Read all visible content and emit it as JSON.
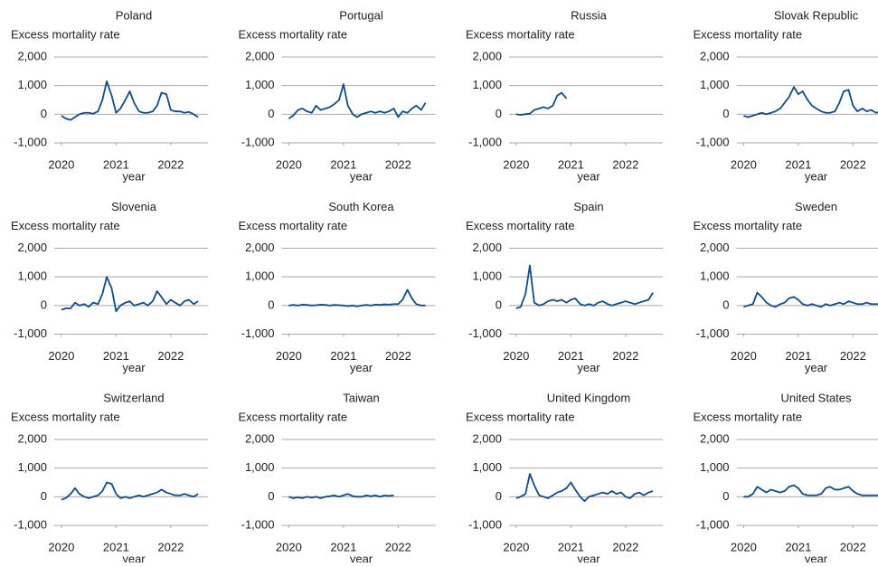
{
  "chart_data": [
    {
      "type": "line",
      "title": "Poland",
      "ylabel": "Excess mortality rate",
      "xlabel": "year",
      "color": "#0b4d93",
      "x": [
        2020,
        2020.08,
        2020.17,
        2020.25,
        2020.33,
        2020.42,
        2020.5,
        2020.58,
        2020.67,
        2020.75,
        2020.83,
        2020.92,
        2021,
        2021.08,
        2021.17,
        2021.25,
        2021.33,
        2021.42,
        2021.5,
        2021.58,
        2021.67,
        2021.75,
        2021.83,
        2021.92,
        2022,
        2022.08,
        2022.17,
        2022.25,
        2022.33,
        2022.42,
        2022.5
      ],
      "values": [
        -50,
        -150,
        -200,
        -100,
        0,
        50,
        50,
        20,
        100,
        500,
        1150,
        650,
        50,
        200,
        500,
        800,
        400,
        100,
        50,
        50,
        100,
        300,
        750,
        700,
        150,
        100,
        100,
        50,
        80,
        0,
        -100
      ],
      "xlim": [
        2019.87,
        2022.68
      ],
      "xticks": [
        2020,
        2021,
        2022
      ],
      "ylim": [
        -1000,
        2000
      ],
      "yticks": [
        {
          "value": -1000,
          "label": "-1,000"
        },
        0,
        {
          "value": 1000,
          "label": "1,000"
        },
        {
          "value": 2000,
          "label": "2,000"
        }
      ]
    },
    {
      "type": "line",
      "title": "Portugal",
      "ylabel": "Excess mortality rate",
      "xlabel": "year",
      "color": "#0b4d93",
      "x": [
        2020,
        2020.08,
        2020.17,
        2020.25,
        2020.33,
        2020.42,
        2020.5,
        2020.58,
        2020.67,
        2020.75,
        2020.83,
        2020.92,
        2021,
        2021.08,
        2021.17,
        2021.25,
        2021.33,
        2021.42,
        2021.5,
        2021.58,
        2021.67,
        2021.75,
        2021.83,
        2021.92,
        2022,
        2022.08,
        2022.17,
        2022.25,
        2022.33,
        2022.42,
        2022.5
      ],
      "values": [
        -150,
        -50,
        150,
        200,
        100,
        50,
        300,
        150,
        200,
        250,
        350,
        500,
        1050,
        300,
        0,
        -100,
        0,
        50,
        100,
        50,
        100,
        50,
        100,
        200,
        -100,
        100,
        50,
        200,
        300,
        150,
        400
      ],
      "xlim": [
        2019.87,
        2022.68
      ],
      "xticks": [
        2020,
        2021,
        2022
      ],
      "ylim": [
        -1000,
        2000
      ],
      "yticks": [
        {
          "value": -1000,
          "label": "-1,000"
        },
        0,
        {
          "value": 1000,
          "label": "1,000"
        },
        {
          "value": 2000,
          "label": "2,000"
        }
      ]
    },
    {
      "type": "line",
      "title": "Russia",
      "ylabel": "Excess mortality rate",
      "xlabel": "year",
      "color": "#0b4d93",
      "x": [
        2020,
        2020.08,
        2020.17,
        2020.25,
        2020.33,
        2020.42,
        2020.5,
        2020.58,
        2020.67,
        2020.75,
        2020.83,
        2020.92
      ],
      "values": [
        0,
        -20,
        0,
        20,
        150,
        200,
        250,
        200,
        300,
        650,
        750,
        550
      ],
      "xlim": [
        2019.87,
        2022.68
      ],
      "xticks": [
        2020,
        2021,
        2022
      ],
      "ylim": [
        -1000,
        2000
      ],
      "yticks": [
        {
          "value": -1000,
          "label": "-1,000"
        },
        0,
        {
          "value": 1000,
          "label": "1,000"
        },
        {
          "value": 2000,
          "label": "2,000"
        }
      ]
    },
    {
      "type": "line",
      "title": "Slovak Republic",
      "ylabel": "Excess mortality rate",
      "xlabel": "year",
      "color": "#0b4d93",
      "x": [
        2020,
        2020.08,
        2020.17,
        2020.25,
        2020.33,
        2020.42,
        2020.5,
        2020.58,
        2020.67,
        2020.75,
        2020.83,
        2020.92,
        2021,
        2021.08,
        2021.17,
        2021.25,
        2021.33,
        2021.42,
        2021.5,
        2021.58,
        2021.67,
        2021.75,
        2021.83,
        2021.92,
        2022,
        2022.08,
        2022.17,
        2022.25,
        2022.33,
        2022.42,
        2022.5
      ],
      "values": [
        -50,
        -100,
        -50,
        0,
        50,
        0,
        50,
        100,
        200,
        400,
        600,
        950,
        700,
        800,
        500,
        300,
        200,
        100,
        50,
        50,
        100,
        400,
        800,
        850,
        300,
        100,
        200,
        100,
        150,
        50,
        100
      ],
      "xlim": [
        2019.87,
        2022.68
      ],
      "xticks": [
        2020,
        2021,
        2022
      ],
      "ylim": [
        -1000,
        2000
      ],
      "yticks": [
        {
          "value": -1000,
          "label": "-1,000"
        },
        0,
        {
          "value": 1000,
          "label": "1,000"
        },
        {
          "value": 2000,
          "label": "2,000"
        }
      ]
    },
    {
      "type": "line",
      "title": "Slovenia",
      "ylabel": "Excess mortality rate",
      "xlabel": "year",
      "color": "#0b4d93",
      "x": [
        2020,
        2020.08,
        2020.17,
        2020.25,
        2020.33,
        2020.42,
        2020.5,
        2020.58,
        2020.67,
        2020.75,
        2020.83,
        2020.92,
        2021,
        2021.08,
        2021.17,
        2021.25,
        2021.33,
        2021.42,
        2021.5,
        2021.58,
        2021.67,
        2021.75,
        2021.83,
        2021.92,
        2022,
        2022.08,
        2022.17,
        2022.25,
        2022.33,
        2022.42,
        2022.5
      ],
      "values": [
        -150,
        -100,
        -100,
        100,
        0,
        50,
        -50,
        100,
        50,
        400,
        1000,
        600,
        -200,
        0,
        100,
        150,
        0,
        50,
        100,
        0,
        150,
        500,
        300,
        50,
        200,
        100,
        0,
        150,
        200,
        50,
        150
      ],
      "xlim": [
        2019.87,
        2022.68
      ],
      "xticks": [
        2020,
        2021,
        2022
      ],
      "ylim": [
        -1000,
        2000
      ],
      "yticks": [
        {
          "value": -1000,
          "label": "-1,000"
        },
        0,
        {
          "value": 1000,
          "label": "1,000"
        },
        {
          "value": 2000,
          "label": "2,000"
        }
      ]
    },
    {
      "type": "line",
      "title": "South Korea",
      "ylabel": "Excess mortality rate",
      "xlabel": "year",
      "color": "#0b4d93",
      "x": [
        2020,
        2020.08,
        2020.17,
        2020.25,
        2020.33,
        2020.42,
        2020.5,
        2020.58,
        2020.67,
        2020.75,
        2020.83,
        2020.92,
        2021,
        2021.08,
        2021.17,
        2021.25,
        2021.33,
        2021.42,
        2021.5,
        2021.58,
        2021.67,
        2021.75,
        2021.83,
        2021.92,
        2022,
        2022.08,
        2022.17,
        2022.25,
        2022.33,
        2022.42,
        2022.5
      ],
      "values": [
        0,
        20,
        0,
        30,
        20,
        0,
        10,
        30,
        20,
        0,
        20,
        10,
        0,
        -20,
        0,
        -30,
        0,
        20,
        0,
        30,
        20,
        40,
        30,
        50,
        50,
        200,
        550,
        250,
        50,
        0,
        0
      ],
      "xlim": [
        2019.87,
        2022.68
      ],
      "xticks": [
        2020,
        2021,
        2022
      ],
      "ylim": [
        -1000,
        2000
      ],
      "yticks": [
        {
          "value": -1000,
          "label": "-1,000"
        },
        0,
        {
          "value": 1000,
          "label": "1,000"
        },
        {
          "value": 2000,
          "label": "2,000"
        }
      ]
    },
    {
      "type": "line",
      "title": "Spain",
      "ylabel": "Excess mortality rate",
      "xlabel": "year",
      "color": "#0b4d93",
      "x": [
        2020,
        2020.08,
        2020.17,
        2020.25,
        2020.33,
        2020.42,
        2020.5,
        2020.58,
        2020.67,
        2020.75,
        2020.83,
        2020.92,
        2021,
        2021.08,
        2021.17,
        2021.25,
        2021.33,
        2021.42,
        2021.5,
        2021.58,
        2021.67,
        2021.75,
        2021.83,
        2021.92,
        2022,
        2022.08,
        2022.17,
        2022.25,
        2022.33,
        2022.42,
        2022.5
      ],
      "values": [
        -100,
        -50,
        400,
        1400,
        100,
        0,
        50,
        150,
        200,
        150,
        200,
        100,
        200,
        250,
        50,
        0,
        50,
        0,
        100,
        150,
        50,
        0,
        50,
        100,
        150,
        100,
        50,
        100,
        150,
        200,
        450
      ],
      "xlim": [
        2019.87,
        2022.68
      ],
      "xticks": [
        2020,
        2021,
        2022
      ],
      "ylim": [
        -1000,
        2000
      ],
      "yticks": [
        {
          "value": -1000,
          "label": "-1,000"
        },
        0,
        {
          "value": 1000,
          "label": "1,000"
        },
        {
          "value": 2000,
          "label": "2,000"
        }
      ]
    },
    {
      "type": "line",
      "title": "Sweden",
      "ylabel": "Excess mortality rate",
      "xlabel": "year",
      "color": "#0b4d93",
      "x": [
        2020,
        2020.08,
        2020.17,
        2020.25,
        2020.33,
        2020.42,
        2020.5,
        2020.58,
        2020.67,
        2020.75,
        2020.83,
        2020.92,
        2021,
        2021.08,
        2021.17,
        2021.25,
        2021.33,
        2021.42,
        2021.5,
        2021.58,
        2021.67,
        2021.75,
        2021.83,
        2021.92,
        2022,
        2022.08,
        2022.17,
        2022.25,
        2022.33,
        2022.42,
        2022.5
      ],
      "values": [
        -50,
        0,
        50,
        450,
        300,
        100,
        0,
        -50,
        50,
        100,
        250,
        300,
        200,
        50,
        0,
        50,
        0,
        -50,
        50,
        0,
        50,
        100,
        50,
        150,
        100,
        50,
        50,
        100,
        50,
        50,
        50
      ],
      "xlim": [
        2019.87,
        2022.68
      ],
      "xticks": [
        2020,
        2021,
        2022
      ],
      "ylim": [
        -1000,
        2000
      ],
      "yticks": [
        {
          "value": -1000,
          "label": "-1,000"
        },
        0,
        {
          "value": 1000,
          "label": "1,000"
        },
        {
          "value": 2000,
          "label": "2,000"
        }
      ]
    },
    {
      "type": "line",
      "title": "Switzerland",
      "ylabel": "Excess mortality rate",
      "xlabel": "year",
      "color": "#0b4d93",
      "x": [
        2020,
        2020.08,
        2020.17,
        2020.25,
        2020.33,
        2020.42,
        2020.5,
        2020.58,
        2020.67,
        2020.75,
        2020.83,
        2020.92,
        2021,
        2021.08,
        2021.17,
        2021.25,
        2021.33,
        2021.42,
        2021.5,
        2021.58,
        2021.67,
        2021.75,
        2021.83,
        2021.92,
        2022,
        2022.08,
        2022.17,
        2022.25,
        2022.33,
        2022.42,
        2022.5
      ],
      "values": [
        -100,
        -50,
        100,
        300,
        100,
        0,
        -50,
        0,
        50,
        200,
        500,
        450,
        100,
        -50,
        0,
        -50,
        0,
        50,
        0,
        50,
        100,
        150,
        250,
        150,
        100,
        50,
        50,
        100,
        50,
        0,
        100
      ],
      "xlim": [
        2019.87,
        2022.68
      ],
      "xticks": [
        2020,
        2021,
        2022
      ],
      "ylim": [
        -1000,
        2000
      ],
      "yticks": [
        {
          "value": -1000,
          "label": "-1,000"
        },
        0,
        {
          "value": 1000,
          "label": "1,000"
        },
        {
          "value": 2000,
          "label": "2,000"
        }
      ]
    },
    {
      "type": "line",
      "title": "Taiwan",
      "ylabel": "Excess mortality rate",
      "xlabel": "year",
      "color": "#0b4d93",
      "x": [
        2020,
        2020.08,
        2020.17,
        2020.25,
        2020.33,
        2020.42,
        2020.5,
        2020.58,
        2020.67,
        2020.75,
        2020.83,
        2020.92,
        2021,
        2021.08,
        2021.17,
        2021.25,
        2021.33,
        2021.42,
        2021.5,
        2021.58,
        2021.67,
        2021.75,
        2021.83,
        2021.92
      ],
      "values": [
        0,
        -50,
        -20,
        -50,
        0,
        -30,
        0,
        -50,
        0,
        20,
        50,
        0,
        50,
        100,
        20,
        0,
        0,
        50,
        20,
        50,
        0,
        50,
        30,
        50
      ],
      "xlim": [
        2019.87,
        2022.68
      ],
      "xticks": [
        2020,
        2021,
        2022
      ],
      "ylim": [
        -1000,
        2000
      ],
      "yticks": [
        {
          "value": -1000,
          "label": "-1,000"
        },
        0,
        {
          "value": 1000,
          "label": "1,000"
        },
        {
          "value": 2000,
          "label": "2,000"
        }
      ]
    },
    {
      "type": "line",
      "title": "United Kingdom",
      "ylabel": "Excess mortality rate",
      "xlabel": "year",
      "color": "#0b4d93",
      "x": [
        2020,
        2020.08,
        2020.17,
        2020.25,
        2020.33,
        2020.42,
        2020.5,
        2020.58,
        2020.67,
        2020.75,
        2020.83,
        2020.92,
        2021,
        2021.08,
        2021.17,
        2021.25,
        2021.33,
        2021.42,
        2021.5,
        2021.58,
        2021.67,
        2021.75,
        2021.83,
        2021.92,
        2022,
        2022.08,
        2022.17,
        2022.25,
        2022.33,
        2022.42,
        2022.5
      ],
      "values": [
        -50,
        0,
        100,
        800,
        400,
        50,
        0,
        -50,
        50,
        150,
        200,
        300,
        500,
        250,
        0,
        -150,
        0,
        50,
        100,
        150,
        100,
        200,
        100,
        150,
        0,
        -50,
        100,
        150,
        50,
        150,
        200
      ],
      "xlim": [
        2019.87,
        2022.68
      ],
      "xticks": [
        2020,
        2021,
        2022
      ],
      "ylim": [
        -1000,
        2000
      ],
      "yticks": [
        {
          "value": -1000,
          "label": "-1,000"
        },
        0,
        {
          "value": 1000,
          "label": "1,000"
        },
        {
          "value": 2000,
          "label": "2,000"
        }
      ]
    },
    {
      "type": "line",
      "title": "United States",
      "ylabel": "Excess mortality rate",
      "xlabel": "year",
      "color": "#0b4d93",
      "x": [
        2020,
        2020.08,
        2020.17,
        2020.25,
        2020.33,
        2020.42,
        2020.5,
        2020.58,
        2020.67,
        2020.75,
        2020.83,
        2020.92,
        2021,
        2021.08,
        2021.17,
        2021.25,
        2021.33,
        2021.42,
        2021.5,
        2021.58,
        2021.67,
        2021.75,
        2021.83,
        2021.92,
        2022,
        2022.08,
        2022.17,
        2022.25,
        2022.33,
        2022.42,
        2022.5
      ],
      "values": [
        0,
        0,
        100,
        350,
        250,
        150,
        250,
        200,
        150,
        200,
        350,
        400,
        300,
        100,
        50,
        50,
        50,
        100,
        300,
        350,
        250,
        250,
        300,
        350,
        200,
        100,
        50,
        50,
        50,
        50,
        50
      ],
      "xlim": [
        2019.87,
        2022.68
      ],
      "xticks": [
        2020,
        2021,
        2022
      ],
      "ylim": [
        -1000,
        2000
      ],
      "yticks": [
        {
          "value": -1000,
          "label": "-1,000"
        },
        0,
        {
          "value": 1000,
          "label": "1,000"
        },
        {
          "value": 2000,
          "label": "2,000"
        }
      ]
    }
  ]
}
